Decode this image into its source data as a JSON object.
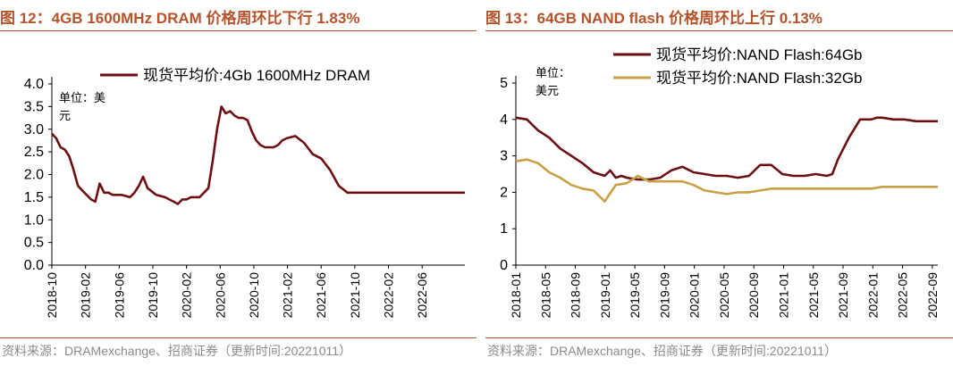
{
  "colors": {
    "title": "#b5532b",
    "dram": "#6b0f12",
    "nand64": "#6b0f12",
    "nand32": "#c8a045",
    "source": "#8a8a8a"
  },
  "left": {
    "title": "图 12：4GB 1600MHz DRAM 价格周环比下行 1.83%",
    "source": "资料来源：DRAMexchange、招商证券（更新时间:20221011）",
    "chart_data": {
      "type": "line",
      "title": "图 12：4GB 1600MHz DRAM 价格周环比下行 1.83%",
      "unit_label": "单位：美元",
      "ylim": [
        0,
        4.0
      ],
      "yticks": [
        "0.0",
        "0.5",
        "1.0",
        "1.5",
        "2.0",
        "2.5",
        "3.0",
        "3.5",
        "4.0"
      ],
      "xticks": [
        "2018-10",
        "2019-02",
        "2019-06",
        "2019-10",
        "2020-02",
        "2020-06",
        "2020-10",
        "2021-02",
        "2021-06",
        "2021-10",
        "2022-02",
        "2022-06"
      ],
      "legend": "top",
      "series": [
        {
          "name": "现货平均价:4Gb 1600MHz DRAM",
          "x": [
            0,
            0.5,
            1,
            1.5,
            2,
            2.5,
            3,
            3.5,
            4,
            4.5,
            5,
            5.5,
            6,
            6.5,
            7,
            8,
            9,
            9.5,
            10,
            10.5,
            11,
            12,
            13,
            13.5,
            14,
            14.5,
            15,
            15.5,
            16,
            17,
            18,
            18.5,
            19,
            19.5,
            20,
            20.5,
            21,
            21.5,
            22,
            22.5,
            23,
            23.5,
            24,
            24.5,
            25,
            25.5,
            26,
            26.5,
            27,
            28,
            29,
            30,
            31,
            32,
            33,
            34,
            35,
            36,
            37,
            38,
            39,
            40,
            41,
            42,
            43,
            44,
            45,
            46,
            47,
            47.5
          ],
          "values": [
            2.9,
            2.8,
            2.6,
            2.55,
            2.4,
            2.1,
            1.75,
            1.65,
            1.55,
            1.45,
            1.4,
            1.8,
            1.6,
            1.6,
            1.55,
            1.55,
            1.5,
            1.6,
            1.75,
            1.95,
            1.7,
            1.55,
            1.5,
            1.45,
            1.4,
            1.35,
            1.45,
            1.45,
            1.5,
            1.5,
            1.7,
            2.3,
            3.0,
            3.5,
            3.35,
            3.4,
            3.3,
            3.25,
            3.25,
            3.2,
            2.95,
            2.75,
            2.65,
            2.6,
            2.6,
            2.6,
            2.65,
            2.75,
            2.8,
            2.85,
            2.7,
            2.45,
            2.35,
            2.1,
            1.75,
            1.6,
            1.6,
            1.6,
            1.6,
            1.6,
            1.6,
            1.6,
            1.6,
            1.6,
            1.6,
            1.6,
            1.6,
            1.6,
            1.6,
            1.6
          ]
        }
      ]
    }
  },
  "right": {
    "title": "图 13：64GB NAND flash 价格周环比上行 0.13%",
    "source": "资料来源：DRAMexchange、招商证券（更新时间:20221011）",
    "chart_data": {
      "type": "line",
      "title": "图 13：64GB NAND flash 价格周环比上行 0.13%",
      "unit_label": "单位：美元",
      "ylim": [
        0,
        5
      ],
      "yticks": [
        "0",
        "1",
        "2",
        "3",
        "4",
        "5"
      ],
      "xticks": [
        "2018-01",
        "2018-05",
        "2018-09",
        "2019-01",
        "2019-05",
        "2019-09",
        "2020-01",
        "2020-05",
        "2020-09",
        "2021-01",
        "2021-05",
        "2021-09",
        "2022-01",
        "2022-05",
        "2022-09"
      ],
      "legend": "top-right",
      "series": [
        {
          "name": "现货平均价:NAND Flash:64Gb",
          "x": [
            0,
            2,
            4,
            6,
            8,
            10,
            12,
            14,
            16,
            17,
            18,
            19,
            20,
            22,
            24,
            26,
            28,
            30,
            32,
            34,
            36,
            38,
            40,
            42,
            44,
            46,
            48,
            50,
            52,
            54,
            56,
            57,
            58,
            60,
            62,
            63,
            64,
            65,
            66,
            68,
            70,
            72,
            74,
            76
          ],
          "values": [
            4.05,
            4.0,
            3.7,
            3.5,
            3.2,
            3.0,
            2.8,
            2.55,
            2.45,
            2.6,
            2.4,
            2.45,
            2.4,
            2.35,
            2.35,
            2.4,
            2.6,
            2.7,
            2.55,
            2.5,
            2.45,
            2.45,
            2.4,
            2.45,
            2.75,
            2.75,
            2.5,
            2.45,
            2.45,
            2.5,
            2.45,
            2.5,
            2.9,
            3.5,
            4.0,
            4.0,
            4.0,
            4.05,
            4.05,
            4.0,
            4.0,
            3.95,
            3.95,
            3.95
          ]
        },
        {
          "name": "现货平均价:NAND Flash:32Gb",
          "x": [
            0,
            2,
            4,
            6,
            8,
            10,
            12,
            14,
            16,
            18,
            20,
            22,
            24,
            26,
            28,
            30,
            32,
            34,
            36,
            38,
            40,
            42,
            44,
            46,
            48,
            50,
            52,
            54,
            56,
            58,
            60,
            62,
            64,
            66,
            68,
            70,
            72,
            74,
            76
          ],
          "values": [
            2.85,
            2.9,
            2.8,
            2.55,
            2.4,
            2.2,
            2.1,
            2.05,
            1.75,
            2.2,
            2.25,
            2.45,
            2.3,
            2.3,
            2.3,
            2.3,
            2.2,
            2.05,
            2.0,
            1.95,
            2.0,
            2.0,
            2.05,
            2.1,
            2.1,
            2.1,
            2.1,
            2.1,
            2.1,
            2.1,
            2.1,
            2.1,
            2.1,
            2.15,
            2.15,
            2.15,
            2.15,
            2.15,
            2.15
          ]
        }
      ]
    }
  }
}
